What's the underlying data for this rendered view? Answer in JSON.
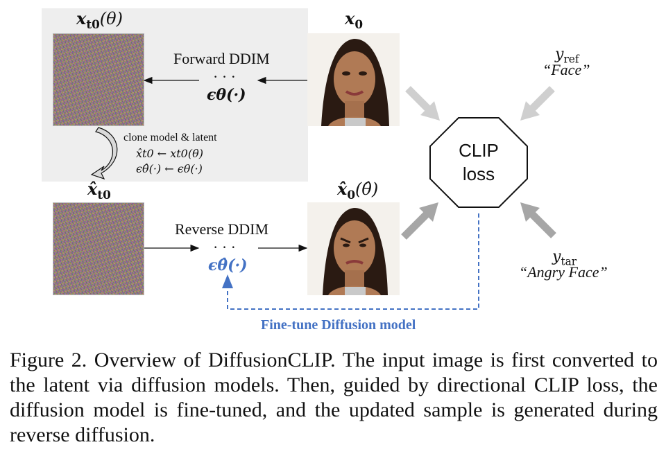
{
  "labels": {
    "x_t0_theta": "x",
    "x_t0_theta_sub": "t0",
    "x_t0_theta_arg": "(θ)",
    "x0": "x",
    "x0_sub": "0",
    "xhat_t0": "x̂",
    "xhat_t0_sub": "t0",
    "xhat0": "x̂",
    "xhat0_sub": "0",
    "xhat0_arg": "(θ̂)",
    "forward_ddim": "Forward DDIM",
    "reverse_ddim": "Reverse DDIM",
    "dots": "· · ·",
    "eps_theta": "ϵθ(·)",
    "eps_theta_hat": "ϵθ̂(·)",
    "clone_title": "clone model & latent",
    "clone_line1": "x̂t0 ← xt0(θ)",
    "clone_line2": "ϵθ̂(·) ← ϵθ(·)",
    "clip_line1": "CLIP",
    "clip_line2": "loss",
    "y_ref": "y",
    "y_ref_sub": "ref",
    "y_ref_text": "“Face”",
    "y_tar": "y",
    "y_tar_sub": "tar",
    "y_tar_text": "“Angry Face”",
    "finetune": "Fine-tune Diffusion model"
  },
  "caption": "Figure 2.  Overview of DiffusionCLIP. The input image is first converted to the latent via diffusion models.  Then, guided by directional CLIP loss, the diffusion model is fine-tuned, and the updated sample is generated during reverse diffusion.",
  "colors": {
    "panel_bg": "#eeeeee",
    "accent_blue": "#4472c4",
    "arrow_gray": "#a6a6a6",
    "arrow_light": "#cfcfcf"
  }
}
